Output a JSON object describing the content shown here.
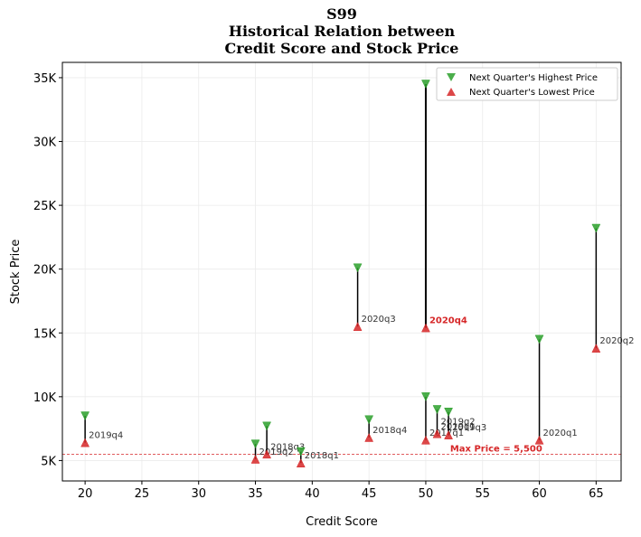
{
  "chart_data": {
    "type": "scatter",
    "title_lines": [
      "S99",
      "Historical Relation between",
      "Credit Score and Stock Price"
    ],
    "xlabel": "Credit Score",
    "ylabel": "Stock Price",
    "xlim": [
      18,
      67.2
    ],
    "ylim": [
      3400,
      36200
    ],
    "x_ticks": [
      20,
      25,
      30,
      35,
      40,
      45,
      50,
      55,
      60,
      65
    ],
    "x_tick_labels": [
      "20",
      "25",
      "30",
      "35",
      "40",
      "45",
      "50",
      "55",
      "60",
      "65"
    ],
    "y_ticks": [
      5000,
      10000,
      15000,
      20000,
      25000,
      30000,
      35000
    ],
    "y_tick_labels": [
      "5K",
      "10K",
      "15K",
      "20K",
      "25K",
      "30K",
      "35K"
    ],
    "grid": true,
    "legend_position": "top-right",
    "series": [
      {
        "name": "Next Quarter's Highest Price",
        "marker": "triangle-down",
        "color": "#2ca02c"
      },
      {
        "name": "Next Quarter's Lowest Price",
        "marker": "triangle-up",
        "color": "#d62728"
      }
    ],
    "points": [
      {
        "x": 20,
        "high": 8500,
        "low": 6400,
        "label": "2019q4",
        "highlight": false
      },
      {
        "x": 35,
        "high": 6300,
        "low": 5100,
        "label": "2019q2",
        "highlight": false
      },
      {
        "x": 36,
        "high": 7700,
        "low": 5500,
        "label": "2018q3",
        "highlight": false
      },
      {
        "x": 39,
        "high": 5700,
        "low": 4800,
        "label": "2018q1",
        "highlight": false
      },
      {
        "x": 44,
        "high": 20100,
        "low": 15500,
        "label": "2020q3",
        "highlight": false
      },
      {
        "x": 45,
        "high": 8200,
        "low": 6800,
        "label": "2018q4",
        "highlight": false
      },
      {
        "x": 50,
        "high": 34500,
        "low": 15400,
        "label": "2020q4",
        "highlight": true
      },
      {
        "x": 50,
        "high": 10000,
        "low": 6600,
        "label": "2017q1",
        "highlight": false
      },
      {
        "x": 51,
        "high": 9000,
        "low": 7100,
        "label": "2019q1",
        "highlight": false
      },
      {
        "x": 52,
        "high": 8800,
        "low": 7000,
        "label": "2019q3",
        "highlight": false
      },
      {
        "x": 60,
        "high": 14500,
        "low": 6600,
        "label": "2020q1",
        "highlight": false
      },
      {
        "x": 65,
        "high": 23200,
        "low": 13800,
        "label": "2020q2",
        "highlight": false
      }
    ],
    "extra_labels": [
      {
        "x": 51,
        "y": 7700,
        "label": "2019q2"
      }
    ],
    "reference_line": {
      "y": 5500,
      "label": "Max Price = 5,500",
      "color": "#d62728"
    }
  }
}
